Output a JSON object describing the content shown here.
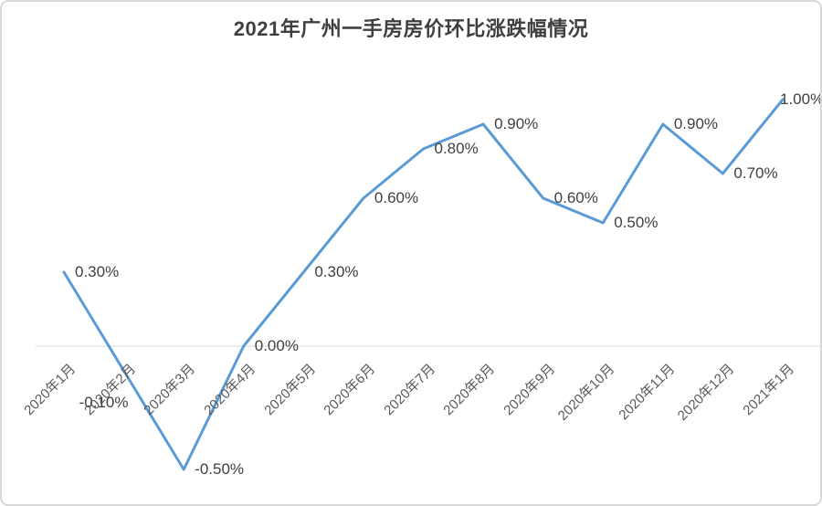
{
  "chart_data": {
    "type": "line",
    "title": "2021年广州一手房房价环比涨跌幅情况",
    "categories": [
      "2020年1月",
      "2020年2月",
      "2020年3月",
      "2020年4月",
      "2020年5月",
      "2020年6月",
      "2020年7月",
      "2020年8月",
      "2020年9月",
      "2020年10月",
      "2020年11月",
      "2020年12月",
      "2021年1月"
    ],
    "values": [
      0.3,
      -0.1,
      -0.5,
      0.0,
      0.3,
      0.6,
      0.8,
      0.9,
      0.6,
      0.5,
      0.9,
      0.7,
      1.0
    ],
    "data_labels": [
      "0.30%",
      "-0.10%",
      "-0.50%",
      "0.00%",
      "0.30%",
      "0.60%",
      "0.80%",
      "0.90%",
      "0.60%",
      "0.50%",
      "0.90%",
      "0.70%",
      "1.00%"
    ],
    "unit": "%",
    "xlabel": "",
    "ylabel": "",
    "ylim": [
      -0.65,
      1.15
    ],
    "grid": "zero-line-only",
    "legend": "none",
    "markers": "none",
    "axis_label_rotation": -45,
    "label_position": "right",
    "label_offsets": {
      "default": {
        "dx": 12,
        "dy": -9
      },
      "1": {
        "dx": -49,
        "dy": 26
      },
      "12": {
        "dx": -3,
        "dy": -9
      }
    },
    "colors": {
      "line": "#5b9bd5",
      "gridline": "#d9d9d9",
      "frame_border": "#d9d9d9",
      "title_text": "#3f3f3f",
      "data_label_text": "#404040",
      "axis_label_text": "#595959",
      "background": "#ffffff"
    }
  }
}
